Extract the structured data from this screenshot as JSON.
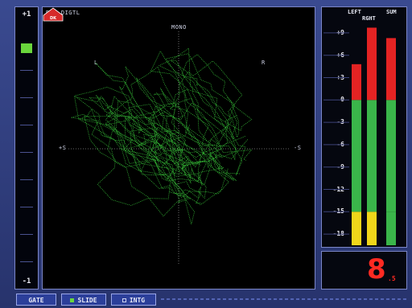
{
  "correlation_meter": {
    "top_label": "+1",
    "bottom_label": "-1",
    "indicator_color": "#6ad63c"
  },
  "scope": {
    "source_label": "RLB DIGTL",
    "mono_label": "MONO",
    "left_label": "L",
    "right_label": "R",
    "left_axis_label": "+S",
    "right_axis_label": "-S",
    "trace_color": "#39c93a"
  },
  "logo": {
    "text": "DK"
  },
  "level_meters": {
    "headers": {
      "left": "LEFT",
      "right": "RGHT",
      "sum": "SUM"
    },
    "scale_labels": [
      "+9",
      "+6",
      "+3",
      "0",
      "-3",
      "-6",
      "-9",
      "-12",
      "-15",
      "-18"
    ],
    "scale_values": [
      9,
      6,
      3,
      0,
      -3,
      -6,
      -9,
      -12,
      -15,
      -18
    ],
    "range": [
      -19.5,
      10.5
    ],
    "bars": [
      {
        "name": "left",
        "peak_db": 4.8
      },
      {
        "name": "right",
        "peak_db": 9.7
      },
      {
        "name": "sum",
        "peak_db": 8.3
      }
    ],
    "colors": {
      "green": "#3ab54a",
      "red": "#e42323",
      "yellow": "#f0d61a"
    },
    "zone_thresholds": {
      "red_above": 0,
      "yellow_below": -15
    }
  },
  "readout": {
    "value": "8",
    "sub": ".5",
    "color": "#ff2a22"
  },
  "buttons": [
    {
      "label": "GATE",
      "indicator": "none"
    },
    {
      "label": "SLIDE",
      "indicator": "on"
    },
    {
      "label": "INTG",
      "indicator": "off"
    }
  ]
}
